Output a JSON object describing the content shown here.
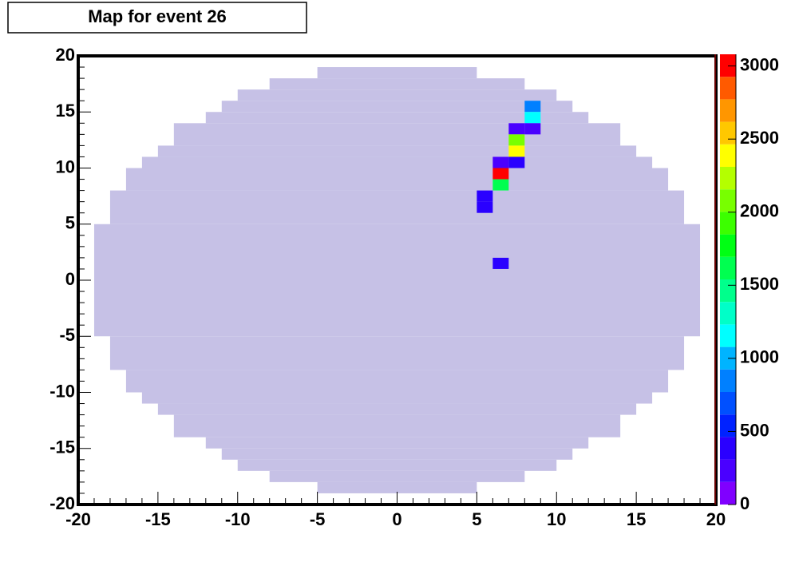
{
  "chart_data": {
    "type": "heatmap",
    "title": "Map for event 26",
    "xlim": [
      -20,
      20
    ],
    "ylim": [
      -20,
      20
    ],
    "xticks": [
      -20,
      -15,
      -10,
      -5,
      0,
      5,
      10,
      15,
      20
    ],
    "yticks": [
      -20,
      -15,
      -10,
      -5,
      0,
      5,
      10,
      15,
      20
    ],
    "zlim": [
      0,
      3080
    ],
    "zticks": [
      0,
      500,
      1000,
      1500,
      2000,
      2500,
      3000
    ],
    "palette": [
      "#8000ff",
      "#4a00ff",
      "#2a00ff",
      "#0022ff",
      "#0050ff",
      "#0080ff",
      "#00b4ff",
      "#00ffff",
      "#00ffc8",
      "#00ff8c",
      "#00ff50",
      "#00ff14",
      "#3cff00",
      "#78ff00",
      "#b4ff00",
      "#ffff00",
      "#ffc800",
      "#ff9600",
      "#ff5a00",
      "#ff0000"
    ],
    "region": {
      "color": "#c6c1e6",
      "rows": [
        {
          "y": [
            18,
            19
          ],
          "x": [
            -5,
            5
          ]
        },
        {
          "y": [
            17,
            18
          ],
          "x": [
            -8,
            8
          ]
        },
        {
          "y": [
            16,
            17
          ],
          "x": [
            -10,
            10
          ]
        },
        {
          "y": [
            15,
            16
          ],
          "x": [
            -11,
            11
          ]
        },
        {
          "y": [
            14,
            15
          ],
          "x": [
            -12,
            12
          ]
        },
        {
          "y": [
            12,
            14
          ],
          "x": [
            -14,
            14
          ]
        },
        {
          "y": [
            11,
            12
          ],
          "x": [
            -15,
            15
          ]
        },
        {
          "y": [
            10,
            11
          ],
          "x": [
            -16,
            16
          ]
        },
        {
          "y": [
            8,
            10
          ],
          "x": [
            -17,
            17
          ]
        },
        {
          "y": [
            5,
            8
          ],
          "x": [
            -18,
            18
          ]
        },
        {
          "y": [
            -5,
            5
          ],
          "x": [
            -19,
            19
          ]
        },
        {
          "y": [
            -8,
            -5
          ],
          "x": [
            -18,
            18
          ]
        },
        {
          "y": [
            -10,
            -8
          ],
          "x": [
            -17,
            17
          ]
        },
        {
          "y": [
            -11,
            -10
          ],
          "x": [
            -16,
            16
          ]
        },
        {
          "y": [
            -12,
            -11
          ],
          "x": [
            -15,
            15
          ]
        },
        {
          "y": [
            -14,
            -12
          ],
          "x": [
            -14,
            14
          ]
        },
        {
          "y": [
            -15,
            -14
          ],
          "x": [
            -12,
            12
          ]
        },
        {
          "y": [
            -16,
            -15
          ],
          "x": [
            -11,
            11
          ]
        },
        {
          "y": [
            -17,
            -16
          ],
          "x": [
            -10,
            10
          ]
        },
        {
          "y": [
            -18,
            -17
          ],
          "x": [
            -8,
            8
          ]
        },
        {
          "y": [
            -19,
            -18
          ],
          "x": [
            -5,
            5
          ]
        }
      ]
    },
    "cells": {
      "x": [
        8,
        8,
        7,
        8,
        7,
        7,
        6,
        7,
        6,
        6,
        5,
        5,
        6
      ],
      "y": [
        15,
        14,
        13,
        13,
        12,
        11,
        10,
        10,
        9,
        8,
        7,
        6,
        1
      ],
      "values": [
        850,
        1150,
        250,
        250,
        2150,
        2450,
        250,
        450,
        3000,
        1550,
        350,
        350,
        350
      ]
    }
  }
}
